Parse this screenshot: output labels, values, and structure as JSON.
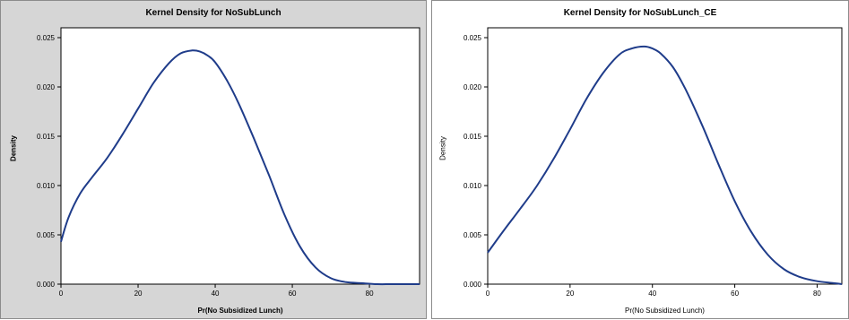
{
  "chart_data": [
    {
      "type": "line",
      "title": "Kernel Density for NoSubLunch",
      "xlabel": "Pr(No Subsidized Lunch)",
      "ylabel": "Density",
      "xlim": [
        0,
        93
      ],
      "ylim": [
        0,
        0.026
      ],
      "xticks": [
        "0",
        "20",
        "40",
        "60",
        "80"
      ],
      "yticks": [
        "0.000",
        "0.005",
        "0.010",
        "0.015",
        "0.020",
        "0.025"
      ],
      "line_color": "#1f3c8a",
      "background": "#d6d6d6",
      "series": [
        {
          "x": [
            0,
            2,
            5,
            8,
            12,
            16,
            20,
            24,
            28,
            31,
            34,
            36,
            38,
            40,
            43,
            46,
            50,
            54,
            58,
            62,
            66,
            70,
            74,
            78,
            82,
            86,
            93
          ],
          "y": [
            0.0043,
            0.0068,
            0.0092,
            0.0108,
            0.0128,
            0.0152,
            0.0178,
            0.0204,
            0.0224,
            0.0234,
            0.0237,
            0.0236,
            0.0232,
            0.0225,
            0.0207,
            0.0184,
            0.0148,
            0.011,
            0.007,
            0.0038,
            0.0017,
            0.0006,
            0.0002,
            0.0001,
            0.0,
            0.0,
            0.0
          ]
        }
      ]
    },
    {
      "type": "line",
      "title": "Kernel Density for NoSubLunch_CE",
      "xlabel": "Pr(No Subsidized Lunch)",
      "ylabel": "Density",
      "xlim": [
        0,
        86
      ],
      "ylim": [
        0,
        0.026
      ],
      "xticks": [
        "0",
        "20",
        "40",
        "60",
        "80"
      ],
      "yticks": [
        "0.000",
        "0.005",
        "0.010",
        "0.015",
        "0.020",
        "0.025"
      ],
      "line_color": "#1f3c8a",
      "background": "#ffffff",
      "series": [
        {
          "x": [
            0,
            4,
            8,
            12,
            16,
            20,
            24,
            28,
            32,
            35,
            38,
            40,
            42,
            45,
            48,
            52,
            56,
            60,
            64,
            68,
            72,
            76,
            80,
            84,
            86
          ],
          "y": [
            0.0032,
            0.0055,
            0.0077,
            0.01,
            0.0127,
            0.0157,
            0.0188,
            0.0214,
            0.0233,
            0.0239,
            0.0241,
            0.0239,
            0.0234,
            0.022,
            0.0198,
            0.0162,
            0.0122,
            0.0084,
            0.0053,
            0.003,
            0.0015,
            0.0007,
            0.0003,
            0.0001,
            0.0
          ]
        }
      ]
    }
  ]
}
